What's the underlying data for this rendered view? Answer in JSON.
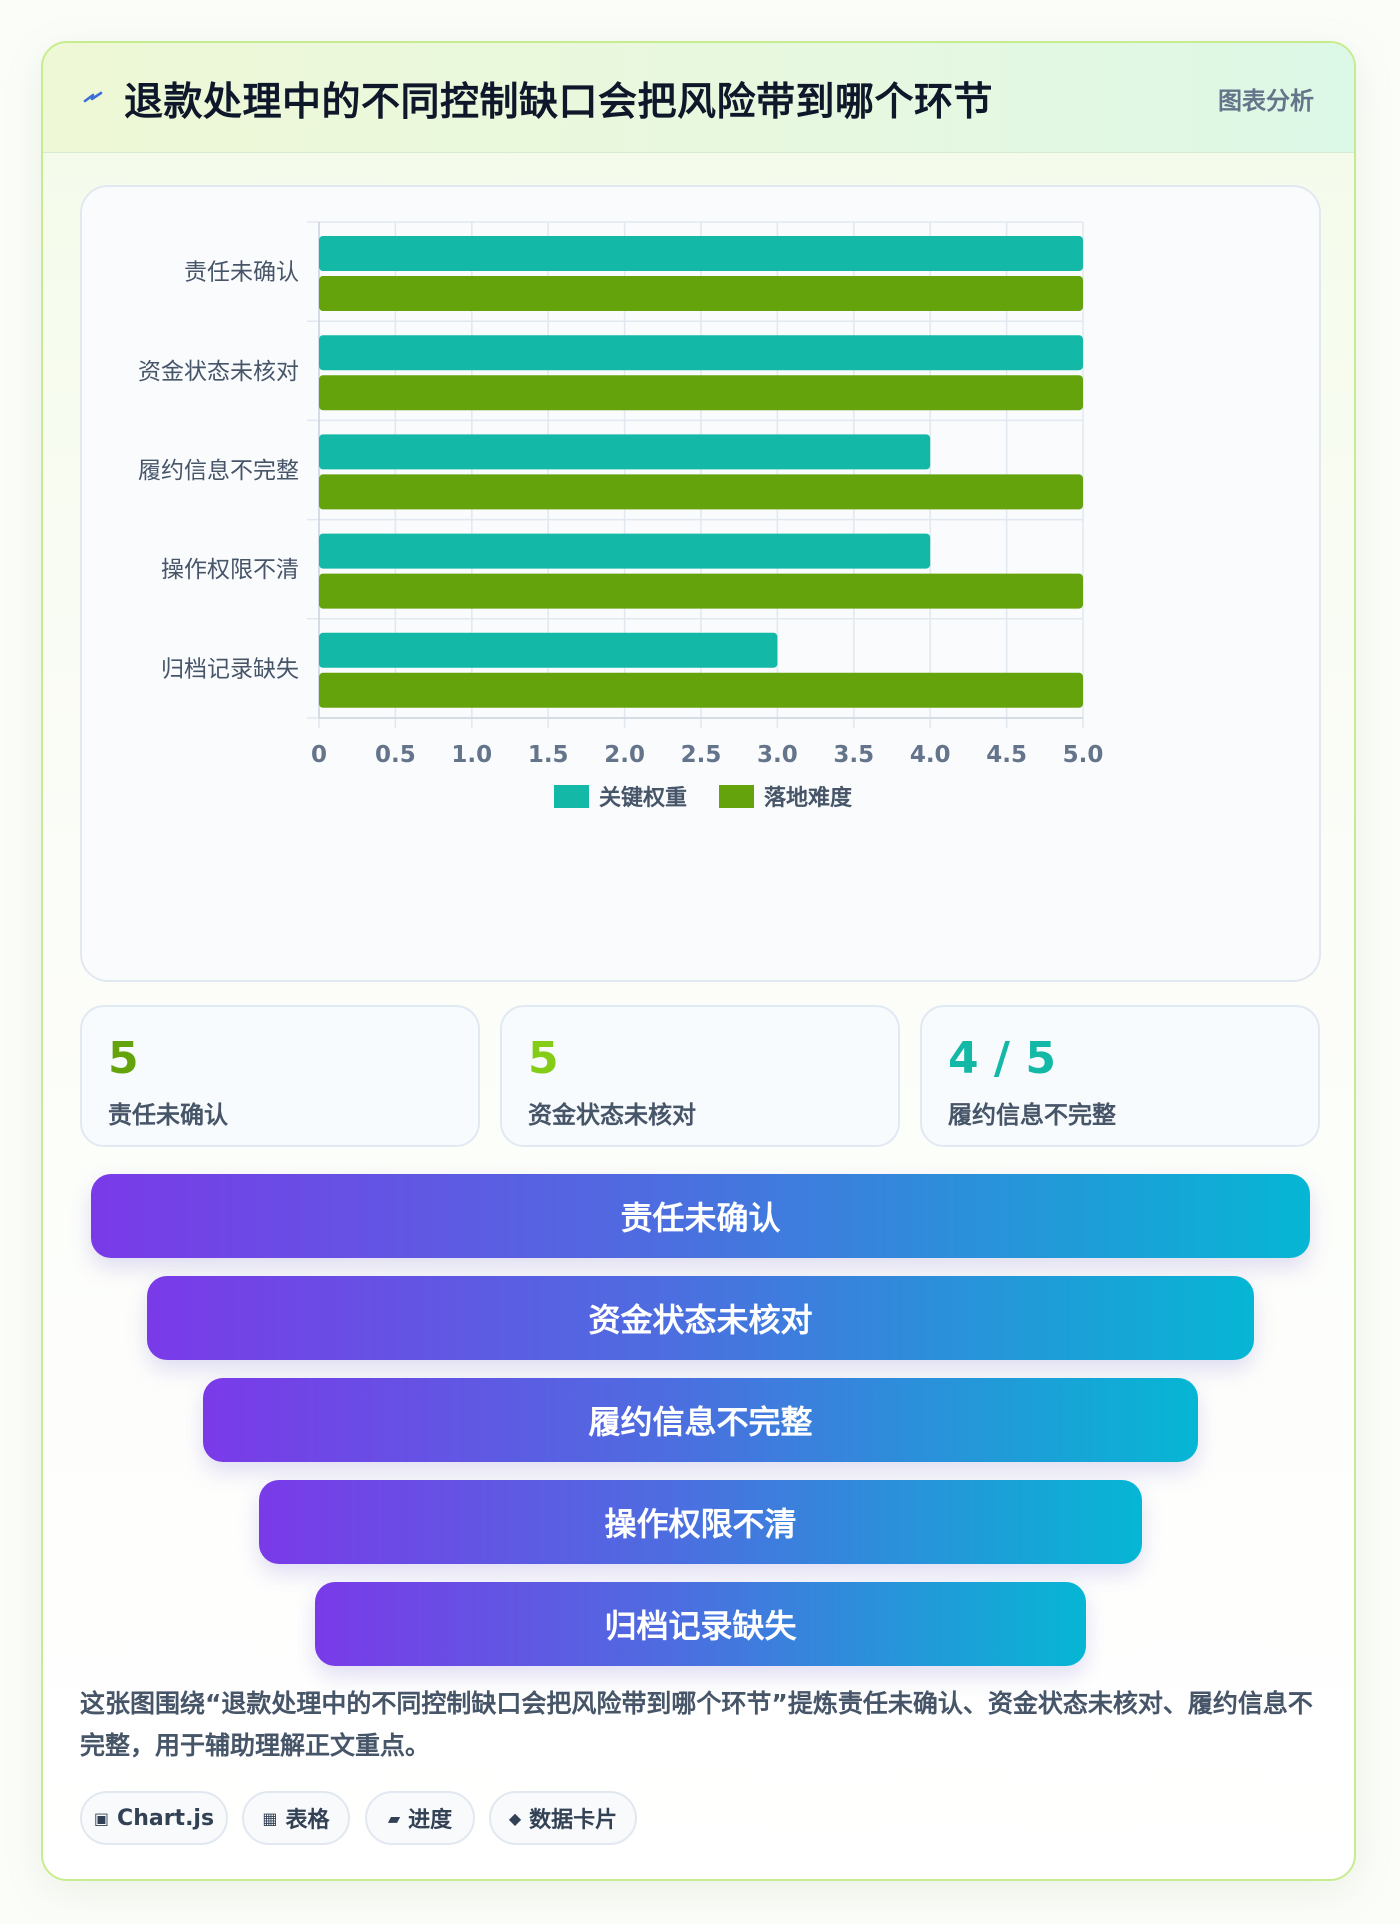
{
  "header": {
    "title": "退款处理中的不同控制缺口会把风险带到哪个环节",
    "tag": "图表分析"
  },
  "chart_data": {
    "type": "bar",
    "orientation": "horizontal",
    "categories": [
      "责任未确认",
      "资金状态未核对",
      "履约信息不完整",
      "操作权限不清",
      "归档记录缺失"
    ],
    "series": [
      {
        "name": "关键权重",
        "color": "#14b8a6",
        "values": [
          5,
          5,
          4,
          4,
          3
        ]
      },
      {
        "name": "落地难度",
        "color": "#65a30d",
        "values": [
          5,
          5,
          5,
          5,
          5
        ]
      }
    ],
    "xlim": [
      0,
      5
    ],
    "x_ticks": [
      "0",
      "0.5",
      "1.0",
      "1.5",
      "2.0",
      "2.5",
      "3.0",
      "3.5",
      "4.0",
      "4.5",
      "5.0"
    ],
    "grid": true,
    "legend_position": "bottom"
  },
  "stats": [
    {
      "value": "5",
      "label": "责任未确认",
      "color": "#65a30d"
    },
    {
      "value": "5",
      "label": "资金状态未核对",
      "color": "#84cc16"
    },
    {
      "value": "4 / 5",
      "label": "履约信息不完整",
      "color": "#14b8a6"
    }
  ],
  "funnel": [
    "责任未确认",
    "资金状态未核对",
    "履约信息不完整",
    "操作权限不清",
    "归档记录缺失"
  ],
  "description": "这张图围绕“退款处理中的不同控制缺口会把风险带到哪个环节”提炼责任未确认、资金状态未核对、履约信息不完整，用于辅助理解正文重点。",
  "chips": [
    {
      "icon": "▣",
      "icon_name": "chart-icon",
      "label": "Chart.js"
    },
    {
      "icon": "▦",
      "icon_name": "table-icon",
      "label": "表格"
    },
    {
      "icon": "▰",
      "icon_name": "progress-icon",
      "label": "进度"
    },
    {
      "icon": "◆",
      "icon_name": "card-icon",
      "label": "数据卡片"
    }
  ]
}
